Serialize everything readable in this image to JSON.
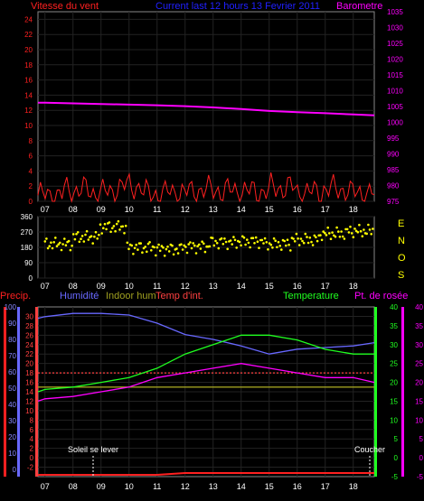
{
  "panel1": {
    "title_left": "Vitesse du vent",
    "title_center": "Current last 12 hours 13 Fevrier 2011",
    "title_right": "Barometre",
    "colors": {
      "wind": "#ff2020",
      "gust": "#ff3030",
      "avg": "#ffffff",
      "baro": "#ff00ff",
      "title_left": "#ff2020",
      "title_center": "#2020ff",
      "title_right": "#ff00ff"
    },
    "left_ticks": [
      "0",
      "2",
      "4",
      "6",
      "8",
      "10",
      "12",
      "14",
      "16",
      "18",
      "20",
      "22",
      "24"
    ],
    "right_ticks": [
      "975",
      "980",
      "985",
      "990",
      "995",
      "1000",
      "1005",
      "1010",
      "1015",
      "1020",
      "1025",
      "1030",
      "1035"
    ],
    "x_ticks": [
      "07",
      "08",
      "09",
      "10",
      "11",
      "12",
      "13",
      "14",
      "15",
      "16",
      "17",
      "18"
    ]
  },
  "panel2": {
    "right_labels": [
      "E",
      "N",
      "O",
      "S"
    ],
    "left_ticks": [
      "0",
      "90",
      "180",
      "270",
      "360"
    ],
    "x_ticks": [
      "07",
      "08",
      "09",
      "10",
      "11",
      "12",
      "13",
      "14",
      "15",
      "16",
      "17",
      "18"
    ],
    "colors": {
      "dir": "#ffff00"
    }
  },
  "panel3": {
    "label_precip": "Precip.",
    "label_humidite": "Humidité",
    "label_indoor_hum": "Indoor hum",
    "label_temp_int": "Temp d'int.",
    "label_temperature": "Temperature",
    "label_dewpoint": "Pt. de rosée",
    "label_sunrise": "Soleil se lever",
    "label_sunset": "Coucher",
    "colors": {
      "precip": "#ff2020",
      "humidite": "#6868ff",
      "indoor_hum": "#a0a020",
      "temp_int": "#ff4040",
      "temperature": "#20ff20",
      "dewpoint": "#ff00ff"
    },
    "hum_ticks": [
      "0",
      "10",
      "20",
      "30",
      "40",
      "50",
      "60",
      "70",
      "80",
      "90",
      "100"
    ],
    "temp_ticks": [
      "-2",
      "0",
      "2",
      "4",
      "6",
      "8",
      "10",
      "12",
      "14",
      "16",
      "18",
      "20",
      "22",
      "24",
      "26",
      "28",
      "30"
    ],
    "right_ticks_a": [
      "-5",
      "0",
      "5",
      "10",
      "15",
      "20",
      "25",
      "30",
      "35",
      "40"
    ],
    "right_ticks_b": [
      "-5",
      "0",
      "5",
      "10",
      "15",
      "20",
      "25",
      "30",
      "35",
      "40"
    ],
    "x_ticks": [
      "07",
      "08",
      "09",
      "10",
      "11",
      "12",
      "13",
      "14",
      "15",
      "16",
      "17",
      "18"
    ]
  },
  "chart_data": [
    {
      "type": "line",
      "title": "Current last 12 hours 13 Fevrier 2011",
      "ylabel": "Vitesse du vent",
      "y2label": "Barometre",
      "ylim": [
        0,
        25
      ],
      "y2lim": [
        975,
        1035
      ],
      "x": [
        "06:45",
        "07:00",
        "08:00",
        "09:00",
        "10:00",
        "11:00",
        "12:00",
        "13:00",
        "14:00",
        "15:00",
        "16:00",
        "17:00",
        "18:00",
        "18:45"
      ],
      "series": [
        {
          "name": "Barometre",
          "axis": "right",
          "values": [
            1006.2,
            1006.2,
            1006.0,
            1005.8,
            1005.6,
            1005.4,
            1005.1,
            1004.7,
            1004.2,
            1003.6,
            1003.2,
            1002.9,
            1002.5,
            1002.2
          ]
        },
        {
          "name": "Vitesse du vent",
          "axis": "left",
          "values": [
            0.8,
            1.5,
            1.2,
            2.0,
            1.0,
            1.2,
            1.5,
            1.4,
            1.3,
            1.8,
            1.2,
            1.6,
            1.1,
            0.9
          ]
        }
      ]
    },
    {
      "type": "scatter",
      "ylim": [
        0,
        360
      ],
      "x": [
        "07:00",
        "08:00",
        "09:00",
        "10:00",
        "11:00",
        "12:00",
        "13:00",
        "14:00",
        "15:00",
        "16:00",
        "17:00",
        "18:00",
        "18:45"
      ],
      "series": [
        {
          "name": "direction",
          "values": [
            200,
            240,
            300,
            180,
            170,
            185,
            210,
            215,
            200,
            225,
            260,
            275,
            255
          ]
        }
      ]
    },
    {
      "type": "line",
      "ylim": [
        -4,
        32
      ],
      "y2lim": [
        -5,
        40
      ],
      "x": [
        "06:45",
        "07:00",
        "08:00",
        "09:00",
        "10:00",
        "11:00",
        "12:00",
        "13:00",
        "14:00",
        "15:00",
        "16:00",
        "17:00",
        "18:00",
        "18:45"
      ],
      "series": [
        {
          "name": "Humidité",
          "unit": "%",
          "values": [
            93,
            94,
            96,
            96,
            95,
            90,
            83,
            80,
            76,
            71,
            74,
            75,
            76,
            78
          ]
        },
        {
          "name": "Indoor hum",
          "unit": "°C scale",
          "values": [
            15,
            15,
            15,
            15,
            15,
            15,
            15,
            15,
            15,
            15,
            15,
            15,
            15,
            15
          ]
        },
        {
          "name": "Temp d'int.",
          "unit": "°C",
          "values": [
            18,
            18,
            18,
            18,
            18,
            18,
            18,
            18,
            18,
            18,
            18,
            18,
            18,
            18
          ]
        },
        {
          "name": "Temperature",
          "unit": "°C",
          "values": [
            14,
            14.5,
            15,
            16,
            17,
            19,
            22,
            24,
            26,
            26,
            25,
            23,
            22,
            22
          ]
        },
        {
          "name": "Pt. de rosée",
          "unit": "°C",
          "values": [
            12,
            12.5,
            13,
            14,
            15,
            17,
            18,
            19,
            20,
            19,
            18,
            17,
            17,
            16
          ]
        },
        {
          "name": "Precip.",
          "unit": "mm",
          "values": [
            0,
            0,
            0,
            0,
            0,
            0,
            0.1,
            0.1,
            0.1,
            0.1,
            0.1,
            0.1,
            0.1,
            0.1
          ]
        }
      ]
    }
  ]
}
